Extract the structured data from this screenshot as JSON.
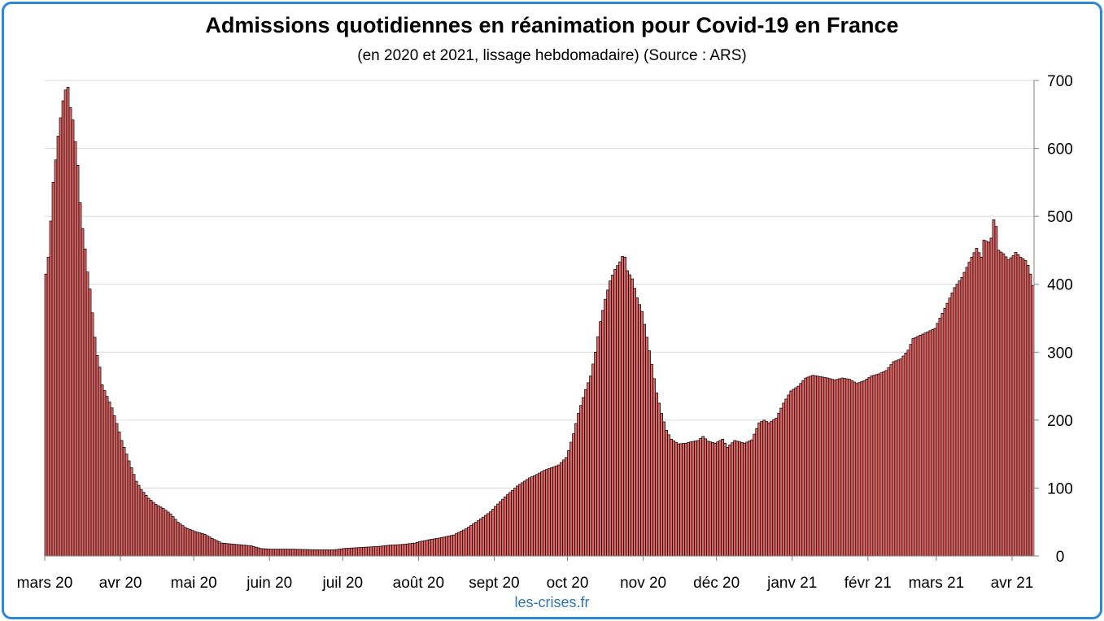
{
  "title": "Admissions quotidiennes en réanimation pour Covid-19 en France",
  "subtitle": "(en 2020 et 2021, lissage hebdomadaire) (Source : ARS)",
  "source_credit": "les-crises.fr",
  "colors": {
    "bar_fill": "#e06666",
    "bar_stroke": "#000000",
    "grid": "#d9d9d9",
    "frame": "#2e86d6",
    "credit": "#2e75b6"
  },
  "chart_data": {
    "type": "bar",
    "title": "Admissions quotidiennes en réanimation pour Covid-19 en France",
    "subtitle": "(en 2020 et 2021, lissage hebdomadaire) (Source : ARS)",
    "xlabel": "",
    "ylabel": "",
    "ylim": [
      0,
      700
    ],
    "y_ticks": [
      0,
      100,
      200,
      300,
      400,
      500,
      600,
      700
    ],
    "y_axis_side": "right",
    "grid": true,
    "x_tick_labels": [
      "mars 20",
      "avr 20",
      "mai 20",
      "juin 20",
      "juil 20",
      "août 20",
      "sept 20",
      "oct 20",
      "nov 20",
      "déc 20",
      "janv 21",
      "févr 21",
      "mars 21",
      "avr 21"
    ],
    "x_start": "2020-03-01",
    "x_end": "2021-04-09",
    "anchors": [
      [
        "2020-03-01",
        415
      ],
      [
        "2020-03-02",
        440
      ],
      [
        "2020-03-03",
        493
      ],
      [
        "2020-03-04",
        550
      ],
      [
        "2020-03-05",
        583
      ],
      [
        "2020-03-06",
        618
      ],
      [
        "2020-03-07",
        645
      ],
      [
        "2020-03-08",
        670
      ],
      [
        "2020-03-09",
        686
      ],
      [
        "2020-03-10",
        690
      ],
      [
        "2020-03-11",
        660
      ],
      [
        "2020-03-12",
        642
      ],
      [
        "2020-03-13",
        610
      ],
      [
        "2020-03-14",
        575
      ],
      [
        "2020-03-15",
        520
      ],
      [
        "2020-03-16",
        482
      ],
      [
        "2020-03-17",
        452
      ],
      [
        "2020-03-18",
        418
      ],
      [
        "2020-03-19",
        393
      ],
      [
        "2020-03-20",
        358
      ],
      [
        "2020-03-21",
        322
      ],
      [
        "2020-03-22",
        295
      ],
      [
        "2020-03-23",
        278
      ],
      [
        "2020-03-24",
        252
      ],
      [
        "2020-03-26",
        235
      ],
      [
        "2020-03-28",
        218
      ],
      [
        "2020-03-30",
        195
      ],
      [
        "2020-04-01",
        170
      ],
      [
        "2020-04-03",
        150
      ],
      [
        "2020-04-05",
        130
      ],
      [
        "2020-04-07",
        110
      ],
      [
        "2020-04-09",
        98
      ],
      [
        "2020-04-12",
        85
      ],
      [
        "2020-04-15",
        76
      ],
      [
        "2020-04-18",
        70
      ],
      [
        "2020-04-21",
        62
      ],
      [
        "2020-04-24",
        50
      ],
      [
        "2020-04-27",
        42
      ],
      [
        "2020-05-01",
        36
      ],
      [
        "2020-05-05",
        32
      ],
      [
        "2020-05-08",
        26
      ],
      [
        "2020-05-12",
        19
      ],
      [
        "2020-05-18",
        17
      ],
      [
        "2020-05-24",
        15
      ],
      [
        "2020-05-28",
        11
      ],
      [
        "2020-06-01",
        10
      ],
      [
        "2020-06-10",
        10
      ],
      [
        "2020-06-20",
        9
      ],
      [
        "2020-06-27",
        9
      ],
      [
        "2020-07-01",
        11
      ],
      [
        "2020-07-10",
        13
      ],
      [
        "2020-07-15",
        14
      ],
      [
        "2020-07-20",
        16
      ],
      [
        "2020-07-25",
        17
      ],
      [
        "2020-07-30",
        19
      ],
      [
        "2020-08-01",
        21
      ],
      [
        "2020-08-05",
        24
      ],
      [
        "2020-08-10",
        27
      ],
      [
        "2020-08-15",
        31
      ],
      [
        "2020-08-20",
        40
      ],
      [
        "2020-08-25",
        52
      ],
      [
        "2020-08-30",
        65
      ],
      [
        "2020-09-01",
        73
      ],
      [
        "2020-09-05",
        87
      ],
      [
        "2020-09-10",
        103
      ],
      [
        "2020-09-15",
        115
      ],
      [
        "2020-09-18",
        120
      ],
      [
        "2020-09-21",
        126
      ],
      [
        "2020-09-24",
        130
      ],
      [
        "2020-09-27",
        134
      ],
      [
        "2020-09-30",
        145
      ],
      [
        "2020-10-01",
        155
      ],
      [
        "2020-10-03",
        180
      ],
      [
        "2020-10-05",
        210
      ],
      [
        "2020-10-08",
        245
      ],
      [
        "2020-10-10",
        265
      ],
      [
        "2020-10-12",
        300
      ],
      [
        "2020-10-14",
        345
      ],
      [
        "2020-10-16",
        378
      ],
      [
        "2020-10-18",
        405
      ],
      [
        "2020-10-20",
        422
      ],
      [
        "2020-10-22",
        433
      ],
      [
        "2020-10-23",
        441
      ],
      [
        "2020-10-24",
        440
      ],
      [
        "2020-10-25",
        420
      ],
      [
        "2020-10-27",
        408
      ],
      [
        "2020-10-29",
        380
      ],
      [
        "2020-10-31",
        360
      ],
      [
        "2020-11-02",
        322
      ],
      [
        "2020-11-04",
        282
      ],
      [
        "2020-11-06",
        240
      ],
      [
        "2020-11-08",
        210
      ],
      [
        "2020-11-10",
        185
      ],
      [
        "2020-11-12",
        172
      ],
      [
        "2020-11-15",
        165
      ],
      [
        "2020-11-18",
        166
      ],
      [
        "2020-11-20",
        168
      ],
      [
        "2020-11-23",
        170
      ],
      [
        "2020-11-25",
        176
      ],
      [
        "2020-11-27",
        169
      ],
      [
        "2020-11-30",
        166
      ],
      [
        "2020-12-03",
        172
      ],
      [
        "2020-12-05",
        160
      ],
      [
        "2020-12-08",
        170
      ],
      [
        "2020-12-12",
        166
      ],
      [
        "2020-12-15",
        171
      ],
      [
        "2020-12-18",
        196
      ],
      [
        "2020-12-20",
        200
      ],
      [
        "2020-12-22",
        196
      ],
      [
        "2020-12-25",
        203
      ],
      [
        "2020-12-28",
        225
      ],
      [
        "2020-12-31",
        243
      ],
      [
        "2021-01-03",
        250
      ],
      [
        "2021-01-06",
        262
      ],
      [
        "2021-01-09",
        266
      ],
      [
        "2021-01-12",
        264
      ],
      [
        "2021-01-15",
        262
      ],
      [
        "2021-01-18",
        259
      ],
      [
        "2021-01-21",
        262
      ],
      [
        "2021-01-24",
        260
      ],
      [
        "2021-01-27",
        254
      ],
      [
        "2021-01-30",
        258
      ],
      [
        "2021-02-02",
        265
      ],
      [
        "2021-02-05",
        268
      ],
      [
        "2021-02-08",
        273
      ],
      [
        "2021-02-11",
        286
      ],
      [
        "2021-02-14",
        290
      ],
      [
        "2021-02-17",
        303
      ],
      [
        "2021-02-19",
        320
      ],
      [
        "2021-02-22",
        325
      ],
      [
        "2021-02-25",
        330
      ],
      [
        "2021-02-28",
        335
      ],
      [
        "2021-03-02",
        350
      ],
      [
        "2021-03-05",
        372
      ],
      [
        "2021-03-08",
        395
      ],
      [
        "2021-03-11",
        410
      ],
      [
        "2021-03-13",
        425
      ],
      [
        "2021-03-15",
        440
      ],
      [
        "2021-03-17",
        453
      ],
      [
        "2021-03-19",
        440
      ],
      [
        "2021-03-20",
        465
      ],
      [
        "2021-03-22",
        462
      ],
      [
        "2021-03-23",
        468
      ],
      [
        "2021-03-24",
        495
      ],
      [
        "2021-03-25",
        485
      ],
      [
        "2021-03-26",
        450
      ],
      [
        "2021-03-28",
        445
      ],
      [
        "2021-03-30",
        436
      ],
      [
        "2021-04-01",
        442
      ],
      [
        "2021-04-02",
        447
      ],
      [
        "2021-04-04",
        440
      ],
      [
        "2021-04-06",
        435
      ],
      [
        "2021-04-07",
        428
      ],
      [
        "2021-04-08",
        415
      ],
      [
        "2021-04-09",
        398
      ]
    ]
  }
}
